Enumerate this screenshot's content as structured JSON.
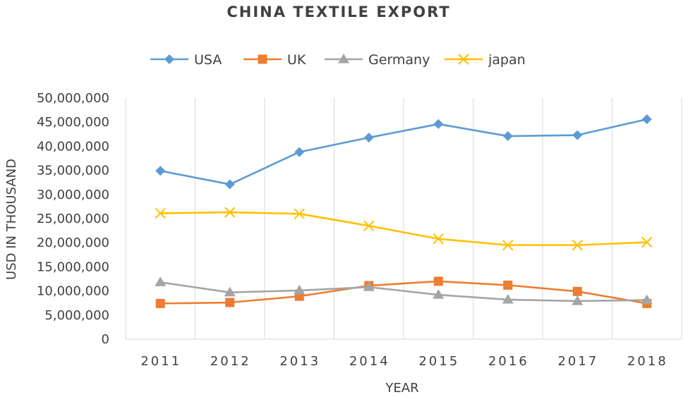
{
  "chart_data": {
    "type": "line",
    "title": "CHINA TEXTILE EXPORT",
    "xlabel": "YEAR",
    "ylabel": "USD IN THOUSAND",
    "x": [
      "2011",
      "2012",
      "2013",
      "2014",
      "2015",
      "2016",
      "2017",
      "2018"
    ],
    "ylim": [
      0,
      50000000
    ],
    "y_ticks": [
      "0",
      "5,000,000",
      "10,000,000",
      "15,000,000",
      "20,000,000",
      "25,000,000",
      "30,000,000",
      "35,000,000",
      "40,000,000",
      "45,000,000",
      "50,000,000"
    ],
    "grid": "vertical",
    "legend_position": "top",
    "series": [
      {
        "name": "USA",
        "color": "#5b9bd5",
        "marker": "diamond",
        "values": [
          34900000,
          32100000,
          38800000,
          41800000,
          44600000,
          42100000,
          42300000,
          45600000
        ]
      },
      {
        "name": "UK",
        "color": "#ed7d31",
        "marker": "square",
        "values": [
          7400000,
          7600000,
          8900000,
          11100000,
          12000000,
          11200000,
          9900000,
          7400000
        ]
      },
      {
        "name": "Germany",
        "color": "#a5a5a5",
        "marker": "triangle",
        "values": [
          11800000,
          9700000,
          10100000,
          10800000,
          9200000,
          8200000,
          7900000,
          8100000
        ]
      },
      {
        "name": "japan",
        "color": "#ffc000",
        "marker": "x",
        "values": [
          26100000,
          26300000,
          26000000,
          23500000,
          20800000,
          19500000,
          19500000,
          20100000
        ]
      }
    ]
  }
}
